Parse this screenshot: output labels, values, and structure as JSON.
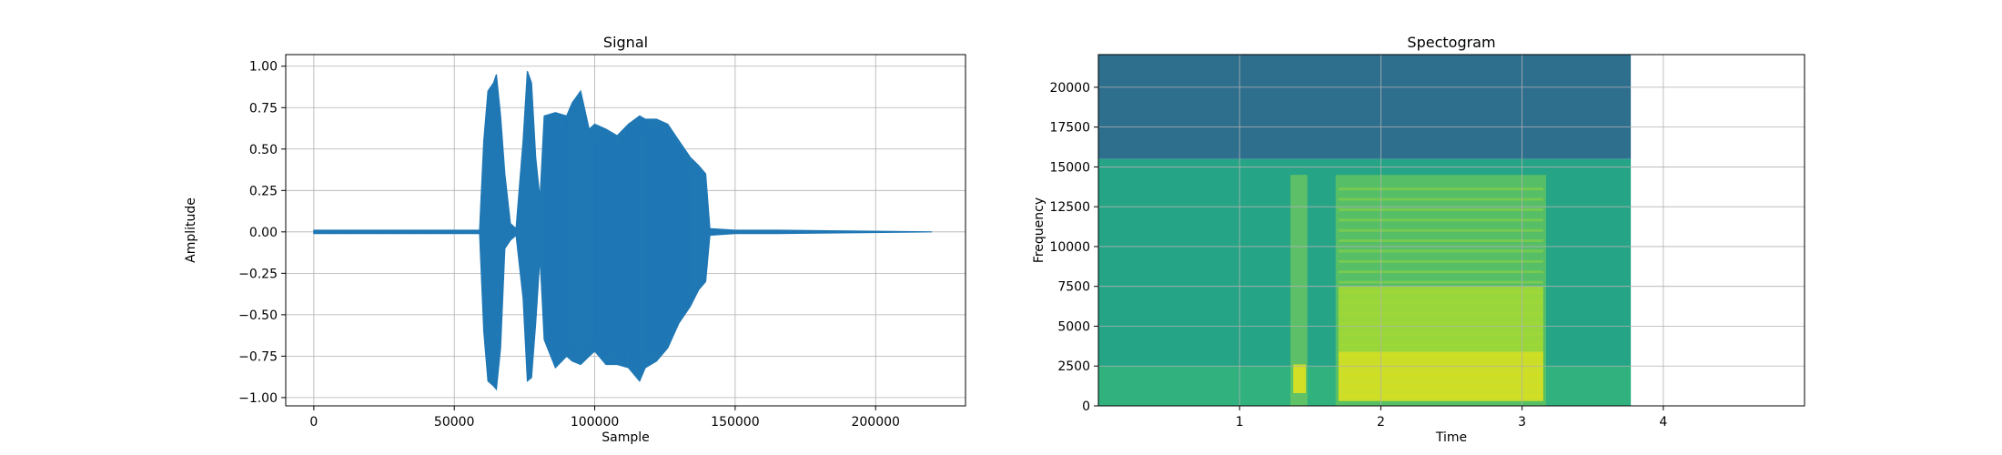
{
  "chart_data": [
    {
      "type": "line",
      "title": "Signal",
      "xlabel": "Sample",
      "ylabel": "Amplitude",
      "xlim": [
        -10000,
        232000
      ],
      "ylim": [
        -1.05,
        1.07
      ],
      "grid": true,
      "x_ticks": [
        0,
        50000,
        100000,
        150000,
        200000
      ],
      "x_tick_labels": [
        "0",
        "50000",
        "100000",
        "150000",
        "200000"
      ],
      "y_ticks": [
        1.0,
        0.75,
        0.5,
        0.25,
        0.0,
        -0.25,
        -0.5,
        -0.75,
        -1.0
      ],
      "y_tick_labels": [
        "1.00",
        "0.75",
        "0.50",
        "0.25",
        "0.00",
        "−0.25",
        "−0.50",
        "−0.75",
        "−1.00"
      ],
      "series_color": "#1f77b4",
      "envelope": {
        "x": [
          0,
          59000,
          60500,
          62000,
          64000,
          65000,
          66500,
          68000,
          70000,
          72000,
          74500,
          76000,
          77500,
          79000,
          80500,
          82000,
          86000,
          90000,
          92000,
          95000,
          98000,
          100000,
          104000,
          108000,
          112000,
          116000,
          118000,
          122000,
          126000,
          130000,
          134000,
          137000,
          139500,
          141000,
          150000,
          165000,
          220000
        ],
        "upper": [
          0.01,
          0.01,
          0.55,
          0.85,
          0.9,
          0.95,
          0.7,
          0.35,
          0.05,
          0.02,
          0.55,
          0.97,
          0.9,
          0.45,
          0.2,
          0.7,
          0.72,
          0.7,
          0.78,
          0.85,
          0.62,
          0.65,
          0.62,
          0.58,
          0.65,
          0.7,
          0.68,
          0.68,
          0.65,
          0.55,
          0.45,
          0.4,
          0.35,
          0.02,
          0.01,
          0.01,
          0.0
        ],
        "lower": [
          -0.01,
          -0.01,
          -0.6,
          -0.9,
          -0.93,
          -0.95,
          -0.7,
          -0.1,
          -0.05,
          -0.02,
          -0.4,
          -0.9,
          -0.88,
          -0.55,
          -0.15,
          -0.65,
          -0.82,
          -0.75,
          -0.78,
          -0.8,
          -0.75,
          -0.72,
          -0.8,
          -0.8,
          -0.82,
          -0.9,
          -0.82,
          -0.78,
          -0.7,
          -0.55,
          -0.45,
          -0.35,
          -0.3,
          -0.02,
          -0.01,
          -0.01,
          0.0
        ]
      }
    },
    {
      "type": "heatmap",
      "title": "Spectogram",
      "xlabel": "Time",
      "ylabel": "Frequency",
      "xlim": [
        0.0,
        5.0
      ],
      "ylim": [
        0,
        22050
      ],
      "data_extent_x": [
        0.0,
        3.77
      ],
      "grid": true,
      "x_ticks": [
        1,
        2,
        3,
        4
      ],
      "x_tick_labels": [
        "1",
        "2",
        "3",
        "4"
      ],
      "y_ticks": [
        0,
        2500,
        5000,
        7500,
        10000,
        12500,
        15000,
        17500,
        20000
      ],
      "y_tick_labels": [
        "0",
        "2500",
        "5000",
        "7500",
        "10000",
        "12500",
        "15000",
        "17500",
        "20000"
      ],
      "colormap": "viridis",
      "bands": [
        {
          "f_min": 15500,
          "f_max": 22050,
          "color": "#2f6f8e"
        },
        {
          "f_min": 0,
          "f_max": 15500,
          "color": "#25a586"
        }
      ],
      "active_segments": [
        {
          "t_start": 1.36,
          "t_end": 1.48,
          "f_max": 14500,
          "color": "#6cc760"
        },
        {
          "t_start": 1.68,
          "t_end": 3.17,
          "f_max": 14500,
          "color": "#62c45f"
        }
      ],
      "hot_regions": [
        {
          "t_start": 1.38,
          "t_end": 1.47,
          "f_min": 800,
          "f_max": 2600,
          "color": "#e6e419"
        },
        {
          "t_start": 1.7,
          "t_end": 3.15,
          "f_min": 300,
          "f_max": 3400,
          "color": "#e0e31c"
        },
        {
          "t_start": 1.7,
          "t_end": 3.15,
          "f_min": 3400,
          "f_max": 7500,
          "color": "#a6db34"
        }
      ]
    }
  ]
}
